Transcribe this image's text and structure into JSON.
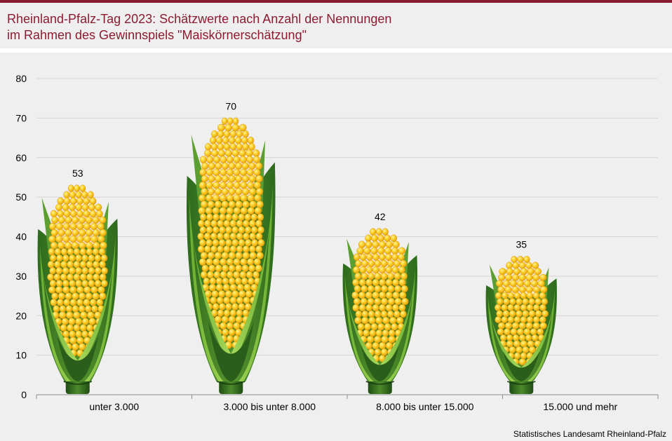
{
  "header": {
    "title_line1": "Rheinland-Pfalz-Tag 2023: Schätzwerte nach Anzahl der Nennungen",
    "title_line2": "im Rahmen des Gewinnspiels \"Maiskörnerschätzung\""
  },
  "footer": {
    "source": "Statistisches Landesamt Rheinland-Pfalz"
  },
  "colors": {
    "title": "#8b1c30",
    "kernel": "#f5c21b",
    "husk_dark": "#2f6b1f",
    "husk_light": "#7bbf3a"
  },
  "chart_data": {
    "type": "bar",
    "title": "Rheinland-Pfalz-Tag 2023: Schätzwerte nach Anzahl der Nennungen im Rahmen des Gewinnspiels \"Maiskörnerschätzung\"",
    "xlabel": "",
    "ylabel": "",
    "categories": [
      "unter 3.000",
      "3.000 bis unter 8.000",
      "8.000 bis unter 15.000",
      "15.000 und mehr"
    ],
    "values": [
      53,
      70,
      42,
      35
    ],
    "data_labels": [
      "53",
      "70",
      "42",
      "35"
    ],
    "ylim": [
      0,
      80
    ],
    "yticks": [
      0,
      10,
      20,
      30,
      40,
      50,
      60,
      70,
      80
    ],
    "grid": true,
    "legend": "none",
    "mark_style": "corn cob pictogram"
  }
}
